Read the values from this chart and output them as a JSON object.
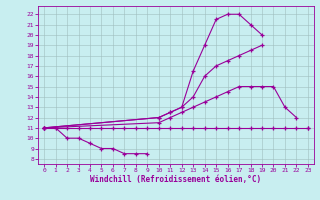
{
  "xlabel": "Windchill (Refroidissement éolien,°C)",
  "bg_color": "#c8eef0",
  "line_color": "#990099",
  "grid_color": "#9fbfbf",
  "xlim": [
    -0.5,
    23.5
  ],
  "ylim": [
    7.5,
    22.8
  ],
  "xticks": [
    0,
    1,
    2,
    3,
    4,
    5,
    6,
    7,
    8,
    9,
    10,
    11,
    12,
    13,
    14,
    15,
    16,
    17,
    18,
    19,
    20,
    21,
    22,
    23
  ],
  "yticks": [
    8,
    9,
    10,
    11,
    12,
    13,
    14,
    15,
    16,
    17,
    18,
    19,
    20,
    21,
    22
  ],
  "series": [
    {
      "x": [
        0,
        1,
        2,
        3,
        4,
        5,
        6,
        7,
        8,
        9
      ],
      "y": [
        11,
        11,
        10,
        10,
        9.5,
        9,
        9,
        8.5,
        8.5,
        8.5
      ]
    },
    {
      "x": [
        0,
        1,
        2,
        3,
        4,
        5,
        6,
        7,
        8,
        9,
        10,
        11,
        12,
        13,
        14,
        15,
        16,
        17,
        18,
        19,
        20,
        21,
        22,
        23
      ],
      "y": [
        11,
        11,
        11,
        11,
        11,
        11,
        11,
        11,
        11,
        11,
        11,
        11,
        11,
        11,
        11,
        11,
        11,
        11,
        11,
        11,
        11,
        11,
        11,
        11
      ]
    },
    {
      "x": [
        0,
        10,
        11,
        12,
        13,
        14,
        15,
        16,
        17,
        18,
        19,
        20,
        21,
        22
      ],
      "y": [
        11,
        11.5,
        12,
        12.5,
        13,
        13.5,
        14,
        14.5,
        15,
        15,
        15,
        15,
        13,
        12
      ]
    },
    {
      "x": [
        0,
        10,
        11,
        12,
        13,
        14,
        15,
        16,
        17,
        18,
        19
      ],
      "y": [
        11,
        12,
        12.5,
        13,
        14,
        16,
        17,
        17.5,
        18,
        18.5,
        19
      ]
    },
    {
      "x": [
        0,
        10,
        11,
        12,
        13,
        14,
        15,
        16,
        17,
        18,
        19,
        20,
        21,
        22,
        23
      ],
      "y": [
        11,
        12,
        12.5,
        13,
        16.5,
        19,
        21.5,
        22,
        22,
        21,
        20,
        null,
        null,
        null,
        11
      ]
    }
  ]
}
